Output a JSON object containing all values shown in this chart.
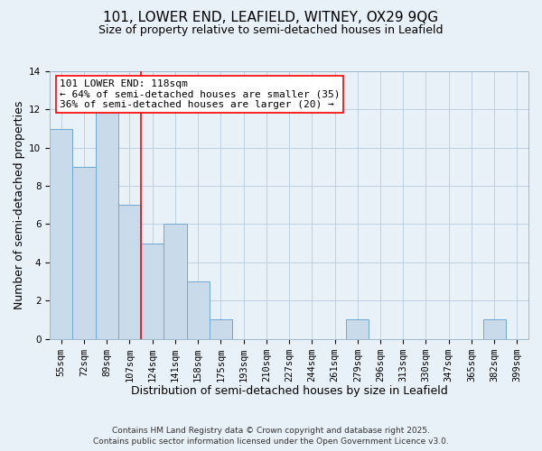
{
  "title": "101, LOWER END, LEAFIELD, WITNEY, OX29 9QG",
  "subtitle": "Size of property relative to semi-detached houses in Leafield",
  "xlabel": "Distribution of semi-detached houses by size in Leafield",
  "ylabel": "Number of semi-detached properties",
  "categories": [
    "55sqm",
    "72sqm",
    "89sqm",
    "107sqm",
    "124sqm",
    "141sqm",
    "158sqm",
    "175sqm",
    "193sqm",
    "210sqm",
    "227sqm",
    "244sqm",
    "261sqm",
    "279sqm",
    "296sqm",
    "313sqm",
    "330sqm",
    "347sqm",
    "365sqm",
    "382sqm",
    "399sqm"
  ],
  "values": [
    11,
    9,
    12,
    7,
    5,
    6,
    3,
    1,
    0,
    0,
    0,
    0,
    0,
    1,
    0,
    0,
    0,
    0,
    0,
    1,
    0
  ],
  "bar_color": "#c9daea",
  "bar_edge_color": "#6fa8d0",
  "bg_color": "#e8f0f8",
  "grid_color": "#c0cfe0",
  "vline_color": "red",
  "vline_pos": 3.5,
  "annotation_line1": "101 LOWER END: 118sqm",
  "annotation_line2": "← 64% of semi-detached houses are smaller (35)",
  "annotation_line3": "36% of semi-detached houses are larger (20) →",
  "ylim": [
    0,
    14
  ],
  "yticks": [
    0,
    2,
    4,
    6,
    8,
    10,
    12,
    14
  ],
  "footer1": "Contains HM Land Registry data © Crown copyright and database right 2025.",
  "footer2": "Contains public sector information licensed under the Open Government Licence v3.0.",
  "title_fontsize": 11,
  "subtitle_fontsize": 9,
  "axis_label_fontsize": 9,
  "tick_fontsize": 7.5,
  "annot_fontsize": 8,
  "footer_fontsize": 6.5
}
